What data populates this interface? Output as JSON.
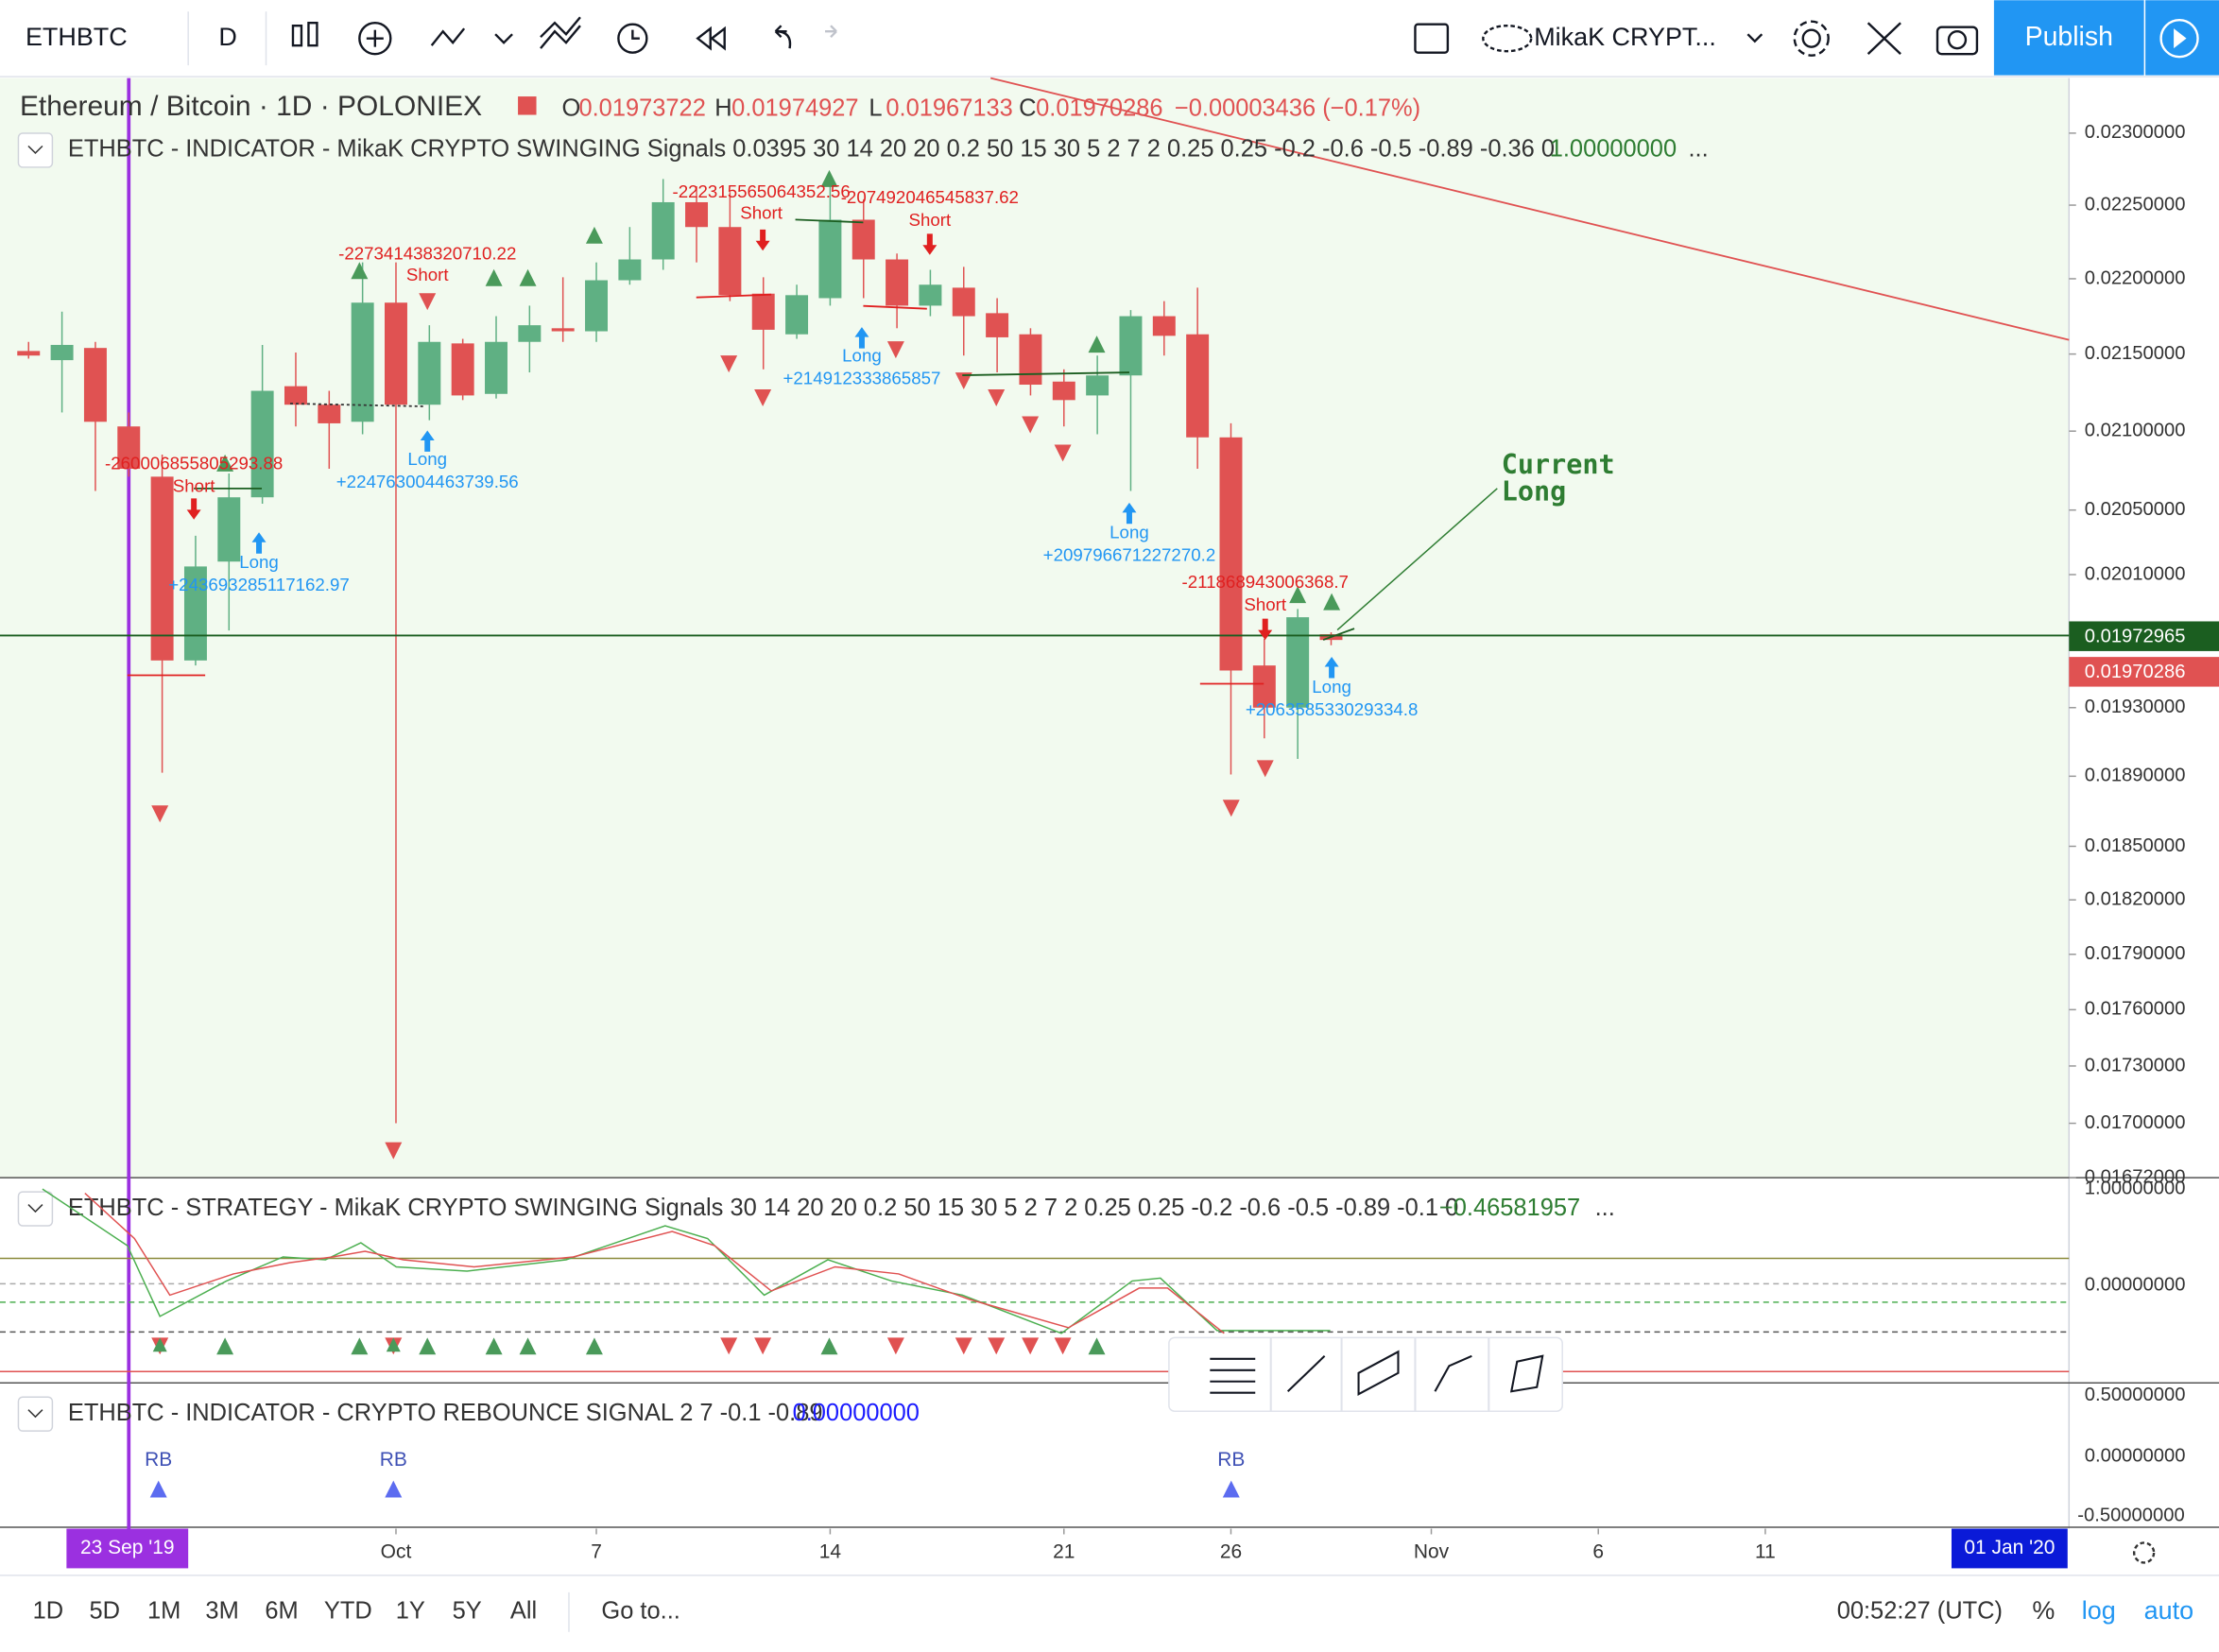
{
  "toolbar": {
    "symbol": "ETHBTC",
    "interval": "D",
    "layout": "MikaK CRYPT...",
    "publish": "Publish"
  },
  "legend": {
    "symbol": "Ethereum / Bitcoin · 1D · POLONIEX",
    "ohlc": [
      {
        "k": "O",
        "v": "0.01973722"
      },
      {
        "k": "H",
        "v": "0.01974927"
      },
      {
        "k": "L",
        "v": "0.01967133"
      },
      {
        "k": "C",
        "v": "0.01970286"
      }
    ],
    "change": "−0.00003436 (−0.17%)",
    "indicator": "ETHBTC - INDICATOR - MikaK CRYPTO SWINGING Signals 0.0395 30 14 20 20 0.2 50 15 30 5 2 7 2 0.25 0.25 -0.2 -0.6 -0.5 -0.89 -0.36 0",
    "indicator_value": "1.00000000",
    "more": "..."
  },
  "chart_data": {
    "type": "candlestick",
    "log": true,
    "up_color": "#5fb083",
    "down_color": "#e05252",
    "open": [
      0.02152,
      0.02146,
      0.02154,
      0.02103,
      0.02071,
      0.01958,
      0.02018,
      0.02058,
      0.02129,
      0.02117,
      0.02106,
      0.02184,
      0.02117,
      0.02157,
      0.02124,
      0.02158,
      0.02167,
      0.02165,
      0.02199,
      0.02213,
      0.02252,
      0.02235,
      0.0219,
      0.02163,
      0.02187,
      0.0224,
      0.02213,
      0.02182,
      0.02194,
      0.02177,
      0.02163,
      0.02132,
      0.02123,
      0.02136,
      0.02175,
      0.02163,
      0.02096,
      0.01955,
      0.0193,
      0.01973722
    ],
    "high": [
      0.02158,
      0.02178,
      0.02158,
      0.02112,
      0.02085,
      0.02034,
      0.02073,
      0.02156,
      0.02151,
      0.02126,
      0.02211,
      0.02211,
      0.02169,
      0.0216,
      0.02175,
      0.02182,
      0.02201,
      0.02211,
      0.02235,
      0.02268,
      0.02263,
      0.02259,
      0.02201,
      0.02196,
      0.02263,
      0.02254,
      0.02217,
      0.02206,
      0.02208,
      0.02187,
      0.02167,
      0.0214,
      0.02149,
      0.02179,
      0.02185,
      0.02194,
      0.02105,
      0.01971,
      0.01989,
      0.01974927
    ],
    "low": [
      0.02147,
      0.02112,
      0.02062,
      0.02071,
      0.01892,
      0.01955,
      0.01976,
      0.02054,
      0.02103,
      0.02076,
      0.02098,
      0.017,
      0.02107,
      0.0212,
      0.02121,
      0.02138,
      0.02158,
      0.02158,
      0.02196,
      0.02206,
      0.02211,
      0.02185,
      0.0214,
      0.0216,
      0.02182,
      0.02187,
      0.02167,
      0.02175,
      0.02149,
      0.02138,
      0.02123,
      0.02103,
      0.02098,
      0.02062,
      0.02149,
      0.02076,
      0.01891,
      0.01912,
      0.019,
      0.01967133
    ],
    "close": [
      0.02149,
      0.02156,
      0.02106,
      0.02076,
      0.01958,
      0.02015,
      0.02058,
      0.02126,
      0.02117,
      0.02105,
      0.02184,
      0.02117,
      0.02158,
      0.02123,
      0.02158,
      0.02169,
      0.02165,
      0.02199,
      0.02213,
      0.02252,
      0.02235,
      0.02189,
      0.02166,
      0.02189,
      0.0224,
      0.02213,
      0.02182,
      0.02196,
      0.02175,
      0.02161,
      0.0213,
      0.0212,
      0.02136,
      0.02175,
      0.02162,
      0.02096,
      0.01952,
      0.0193,
      0.01984,
      0.01970286
    ],
    "ylim": [
      0.01672,
      0.02339
    ],
    "yticks": [
      {
        "value": 0.023,
        "label": "0.02300000"
      },
      {
        "value": 0.0225,
        "label": "0.02250000"
      },
      {
        "value": 0.022,
        "label": "0.02200000"
      },
      {
        "value": 0.0215,
        "label": "0.02150000"
      },
      {
        "value": 0.021,
        "label": "0.02100000"
      },
      {
        "value": 0.0205,
        "label": "0.02050000"
      },
      {
        "value": 0.0201,
        "label": "0.02010000"
      },
      {
        "value": 0.0193,
        "label": "0.01930000"
      },
      {
        "value": 0.0189,
        "label": "0.01890000"
      },
      {
        "value": 0.0185,
        "label": "0.01850000"
      },
      {
        "value": 0.0182,
        "label": "0.01820000"
      },
      {
        "value": 0.0179,
        "label": "0.01790000"
      },
      {
        "value": 0.0176,
        "label": "0.01760000"
      },
      {
        "value": 0.0173,
        "label": "0.01730000"
      },
      {
        "value": 0.017,
        "label": "0.01700000"
      },
      {
        "value": 0.01672,
        "label": "0.01672000"
      }
    ],
    "xticks": [
      {
        "value": 11,
        "label": "Oct"
      },
      {
        "value": 17,
        "label": "7"
      },
      {
        "value": 24,
        "label": "14"
      },
      {
        "value": 31,
        "label": "21"
      },
      {
        "value": 36,
        "label": "26"
      },
      {
        "value": 42,
        "label": "Nov"
      },
      {
        "value": 47,
        "label": "6"
      },
      {
        "value": 52,
        "label": "11"
      }
    ],
    "price_lines": [
      {
        "value": 0.01972965,
        "label": "0.01972965"
      },
      {
        "value": 0.01970286,
        "label": "0.01970286"
      }
    ],
    "annotations": [
      "-260006855805293.88",
      "Short",
      "Long",
      "+243693285117162.97",
      "-227341438320710.22",
      "Short",
      "Long",
      "+224763004463739.56",
      "-222315565064352.56",
      "Short",
      "-207492046545837.62",
      "Short",
      "Long",
      "+214912333865857",
      "Long",
      "+209796671227270.2",
      "-211868943006368.7",
      "Short",
      "Long",
      "+206358533029334.8"
    ],
    "callout": [
      "Current",
      "Long"
    ]
  },
  "cursor_dates": [
    "23 Sep '19",
    "01 Jan '20"
  ],
  "strategy": {
    "title": "ETHBTC - STRATEGY - MikaK CRYPTO SWINGING Signals 30 14 20 20 0.2 50 15 30 5 2 7 2 0.25 0.25 -0.2 -0.6 -0.5 -0.89 -0.1 0",
    "value": "−0.46581957",
    "more": "...",
    "axis": [
      "1.00000000",
      "0.00000000"
    ]
  },
  "rebounce": {
    "title": "ETHBTC - INDICATOR - CRYPTO REBOUNCE SIGNAL 2 7 -0.1 -0.89",
    "value": "0.00000000",
    "axis": [
      "0.50000000",
      "0.00000000",
      "-0.50000000"
    ],
    "signals": [
      "RB",
      "RB",
      "RB"
    ]
  },
  "bottom": {
    "ranges": [
      "1D",
      "5D",
      "1M",
      "3M",
      "6M",
      "YTD",
      "1Y",
      "5Y",
      "All"
    ],
    "goto": "Go to...",
    "clock": "00:52:27 (UTC)",
    "percent": "%",
    "log": "log",
    "auto": "auto"
  }
}
